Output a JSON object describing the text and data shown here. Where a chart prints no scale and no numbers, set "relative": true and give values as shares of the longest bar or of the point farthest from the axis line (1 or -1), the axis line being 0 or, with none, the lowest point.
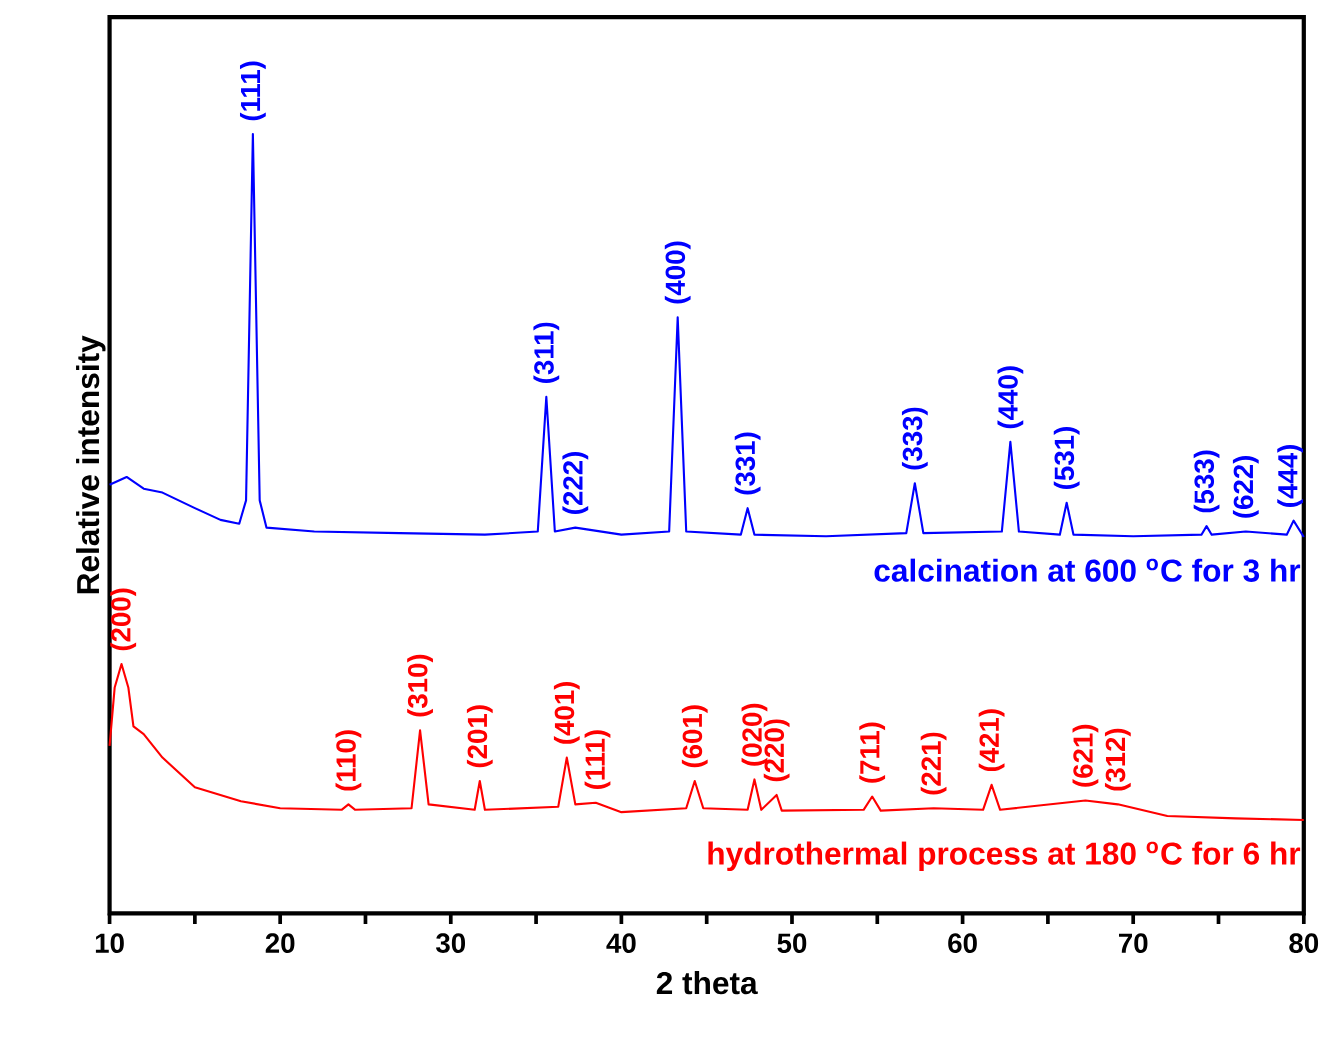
{
  "chart_data": {
    "type": "line",
    "xlabel": "2 theta",
    "ylabel": "Relative intensity",
    "relative": true,
    "legend": false,
    "grid": false,
    "marker": "none",
    "line_style": "solid",
    "xlim": [
      10,
      80
    ],
    "xticks": [
      10,
      {
        "value": 15,
        "label": null
      },
      20,
      {
        "value": 25,
        "label": null
      },
      30,
      {
        "value": 35,
        "label": null
      },
      40,
      {
        "value": 45,
        "label": null
      },
      50,
      {
        "value": 55,
        "label": null
      },
      60,
      {
        "value": 65,
        "label": null
      },
      70,
      {
        "value": 75,
        "label": null
      },
      80
    ],
    "series": [
      {
        "name": "calcination at 600 $^{o}$C for 3 hr",
        "color": "#0000ff",
        "x": [
          10,
          11,
          12,
          13.1,
          15,
          16.5,
          17.6,
          18.0,
          18.4,
          18.8,
          19.2,
          22,
          27,
          32,
          35.1,
          35.6,
          36.1,
          37.3,
          40,
          42.8,
          43.3,
          43.8,
          47.0,
          47.4,
          47.8,
          52,
          56.7,
          57.2,
          57.7,
          62.3,
          62.8,
          63.3,
          65.7,
          66.1,
          66.5,
          70,
          74.0,
          74.3,
          74.6,
          76.6,
          79.0,
          79.4,
          80
        ],
        "values": [
          0.55,
          0.56,
          0.545,
          0.54,
          0.52,
          0.505,
          0.5,
          0.53,
          1.0,
          0.53,
          0.495,
          0.49,
          0.488,
          0.486,
          0.49,
          0.663,
          0.49,
          0.495,
          0.486,
          0.49,
          0.765,
          0.49,
          0.486,
          0.52,
          0.486,
          0.484,
          0.488,
          0.552,
          0.488,
          0.49,
          0.605,
          0.49,
          0.486,
          0.527,
          0.486,
          0.484,
          0.486,
          0.497,
          0.486,
          0.49,
          0.486,
          0.504,
          0.483
        ]
      },
      {
        "name": "hydrothermal process at 180 $^{o}$C for 6 hr",
        "color": "#ff0000",
        "x": [
          10,
          10.3,
          10.7,
          11.1,
          11.4,
          12,
          13.1,
          15,
          17.7,
          20,
          23.6,
          24.0,
          24.4,
          27.7,
          28.2,
          28.7,
          31.4,
          31.7,
          32.0,
          36.3,
          36.8,
          37.3,
          38.5,
          40,
          43.8,
          44.3,
          44.8,
          47.4,
          47.8,
          48.2,
          49.1,
          49.4,
          54.2,
          54.7,
          55.2,
          58.3,
          61.2,
          61.7,
          62.2,
          67.2,
          69.1,
          72,
          76,
          80
        ],
        "values": [
          0.215,
          0.29,
          0.32,
          0.29,
          0.24,
          0.23,
          0.2,
          0.162,
          0.144,
          0.135,
          0.133,
          0.14,
          0.133,
          0.135,
          0.235,
          0.14,
          0.133,
          0.17,
          0.133,
          0.137,
          0.2,
          0.14,
          0.142,
          0.13,
          0.135,
          0.17,
          0.135,
          0.133,
          0.172,
          0.133,
          0.152,
          0.132,
          0.133,
          0.15,
          0.132,
          0.135,
          0.133,
          0.165,
          0.133,
          0.145,
          0.14,
          0.125,
          0.122,
          0.12
        ]
      }
    ],
    "annotations": [
      {
        "text": "(111)",
        "x": 18.4,
        "y": 1.0
      },
      {
        "text": "(311)",
        "x": 35.6,
        "y": 0.663
      },
      {
        "text": "(222)",
        "x": 37.3,
        "y": 0.495
      },
      {
        "text": "(400)",
        "x": 43.3,
        "y": 0.765
      },
      {
        "text": "(331)",
        "x": 47.4,
        "y": 0.52
      },
      {
        "text": "(333)",
        "x": 57.2,
        "y": 0.552
      },
      {
        "text": "(440)",
        "x": 62.8,
        "y": 0.605
      },
      {
        "text": "(531)",
        "x": 66.1,
        "y": 0.527
      },
      {
        "text": "(533)",
        "x": 74.3,
        "y": 0.497
      },
      {
        "text": "(622)",
        "x": 76.6,
        "y": 0.49
      },
      {
        "text": "(444)",
        "x": 79.2,
        "y": 0.504
      },
      {
        "text": "(200)",
        "x": 10.8,
        "y": 0.32
      },
      {
        "text": "(110)",
        "x": 24.0,
        "y": 0.14
      },
      {
        "text": "(310)",
        "x": 28.2,
        "y": 0.235
      },
      {
        "text": "(201)",
        "x": 31.7,
        "y": 0.17
      },
      {
        "text": "(401)",
        "x": 36.8,
        "y": 0.2
      },
      {
        "text": "(111)",
        "x": 38.6,
        "y": 0.142
      },
      {
        "text": "(601)",
        "x": 44.3,
        "y": 0.17
      },
      {
        "text": "(020)",
        "x": 47.8,
        "y": 0.172
      },
      {
        "text": "(220)",
        "x": 49.1,
        "y": 0.152
      },
      {
        "text": "(711)",
        "x": 54.7,
        "y": 0.15
      },
      {
        "text": "(221)",
        "x": 58.3,
        "y": 0.135
      },
      {
        "text": "(421)",
        "x": 61.7,
        "y": 0.165
      },
      {
        "text": "(621)",
        "x": 67.2,
        "y": 0.145
      },
      {
        "text": "(312)",
        "x": 69.1,
        "y": 0.14
      }
    ]
  }
}
